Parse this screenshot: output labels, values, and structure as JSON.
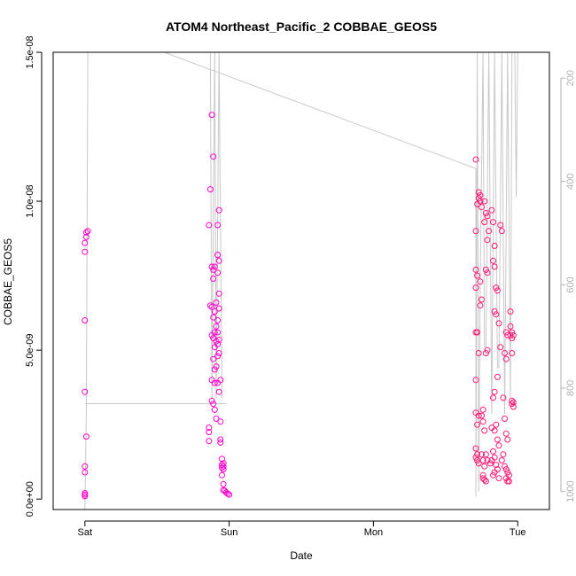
{
  "chart_data": {
    "type": "scatter",
    "title": "ATOM4 Northeast_Pacific_2 COBBAE_GEOS5",
    "xlabel": "Date",
    "ylabel": "COBBAE_GEOS5",
    "x_ticks": [
      "Sat",
      "Sun",
      "Mon",
      "Tue"
    ],
    "y_ticks": [
      "0.0e+00",
      "5.0e-09",
      "1.0e-08",
      "1.5e-08"
    ],
    "y_tick_values": [
      0,
      5e-09,
      1e-08,
      1.5e-08
    ],
    "right_ticks": [
      "200",
      "400",
      "600",
      "800",
      "1000"
    ],
    "right_tick_values": [
      200,
      400,
      600,
      800,
      1000
    ],
    "x_unit": "days since Sat 00:00",
    "xlim": [
      -0.22,
      3.22
    ],
    "ylim": [
      -3.5e-10,
      1.5e-08
    ],
    "right_ylim": [
      1035,
      150
    ],
    "point_color": "#ff00cc",
    "point_color_secondary": "#ff1a75",
    "line_color": "#c8c8c8",
    "points": [
      [
        0.0,
        9e-10
      ],
      [
        0.0,
        2e-10
      ],
      [
        0.0,
        1.5e-10
      ],
      [
        0.0,
        1e-10
      ],
      [
        0.01,
        8.8e-09
      ],
      [
        0.01,
        8.95e-09
      ],
      [
        0.02,
        9e-09
      ],
      [
        0.0,
        8.6e-09
      ],
      [
        0.0,
        8.3e-09
      ],
      [
        0.0,
        6e-09
      ],
      [
        0.0,
        3.6e-09
      ],
      [
        0.01,
        2.1e-09
      ],
      [
        0.0,
        1.1e-09
      ],
      [
        0.88,
        1.29e-08
      ],
      [
        0.89,
        1.15e-08
      ],
      [
        0.87,
        1.04e-08
      ],
      [
        0.86,
        9.2e-09
      ],
      [
        0.93,
        9.7e-09
      ],
      [
        0.92,
        9.2e-09
      ],
      [
        0.92,
        8.2e-09
      ],
      [
        0.93,
        8e-09
      ],
      [
        0.88,
        7.8e-09
      ],
      [
        0.89,
        7.7e-09
      ],
      [
        0.9,
        7.8e-09
      ],
      [
        0.92,
        7.6e-09
      ],
      [
        0.89,
        7.4e-09
      ],
      [
        0.93,
        6.9e-09
      ],
      [
        0.91,
        6.6e-09
      ],
      [
        0.88,
        6.45e-09
      ],
      [
        0.87,
        6.5e-09
      ],
      [
        0.9,
        6.3e-09
      ],
      [
        0.89,
        6.1e-09
      ],
      [
        0.93,
        6.4e-09
      ],
      [
        0.92,
        6e-09
      ],
      [
        0.91,
        5.8e-09
      ],
      [
        0.9,
        5.6e-09
      ],
      [
        0.92,
        5.6e-09
      ],
      [
        0.93,
        5.35e-09
      ],
      [
        0.92,
        5.2e-09
      ],
      [
        0.91,
        5.3e-09
      ],
      [
        0.88,
        5.5e-09
      ],
      [
        0.89,
        5.4e-09
      ],
      [
        0.9,
        5.1e-09
      ],
      [
        0.93,
        4.9e-09
      ],
      [
        0.92,
        4.8e-09
      ],
      [
        0.89,
        4.7e-09
      ],
      [
        0.91,
        4.45e-09
      ],
      [
        0.9,
        4.35e-09
      ],
      [
        0.88,
        4e-09
      ],
      [
        0.9,
        3.9e-09
      ],
      [
        0.92,
        3.9e-09
      ],
      [
        0.94,
        4e-09
      ],
      [
        0.93,
        3.6e-09
      ],
      [
        0.88,
        3.3e-09
      ],
      [
        0.89,
        3.2e-09
      ],
      [
        0.9,
        3e-09
      ],
      [
        0.91,
        2.7e-09
      ],
      [
        0.94,
        2.6e-09
      ],
      [
        0.86,
        2.4e-09
      ],
      [
        0.86,
        2.25e-09
      ],
      [
        0.86,
        1.95e-09
      ],
      [
        0.94,
        2e-09
      ],
      [
        0.94,
        1.9e-09
      ],
      [
        0.95,
        1.35e-09
      ],
      [
        0.96,
        1.2e-09
      ],
      [
        0.95,
        1.15e-09
      ],
      [
        0.96,
        1.1e-09
      ],
      [
        0.95,
        1.05e-09
      ],
      [
        0.96,
        1e-09
      ],
      [
        0.95,
        8e-10
      ],
      [
        0.96,
        5e-10
      ],
      [
        0.96,
        3e-10
      ],
      [
        0.97,
        2.8e-10
      ],
      [
        0.98,
        2.2e-10
      ],
      [
        0.99,
        1.8e-10
      ],
      [
        1.0,
        1.5e-10
      ],
      [
        2.71,
        1.14e-08
      ],
      [
        2.73,
        1.03e-08
      ],
      [
        2.73,
        1.01e-08
      ],
      [
        2.74,
        1.02e-08
      ],
      [
        2.74,
        1e-08
      ],
      [
        2.72,
        9.9e-09
      ],
      [
        2.75,
        9.8e-09
      ],
      [
        2.71,
        9e-09
      ],
      [
        2.71,
        7.7e-09
      ],
      [
        2.72,
        7.5e-09
      ],
      [
        2.71,
        7.1e-09
      ],
      [
        2.74,
        7.3e-09
      ],
      [
        2.75,
        6.7e-09
      ],
      [
        2.74,
        6.5e-09
      ],
      [
        2.71,
        5.6e-09
      ],
      [
        2.72,
        5.6e-09
      ],
      [
        2.73,
        4.9e-09
      ],
      [
        2.71,
        4e-09
      ],
      [
        2.71,
        2.9e-09
      ],
      [
        2.73,
        2.8e-09
      ],
      [
        2.72,
        2.5e-09
      ],
      [
        2.71,
        1.7e-09
      ],
      [
        2.72,
        1.5e-09
      ],
      [
        2.72,
        1.3e-09
      ],
      [
        2.71,
        1.4e-09
      ],
      [
        2.73,
        1.2e-09
      ],
      [
        2.77,
        1e-08
      ],
      [
        2.78,
        9.6e-09
      ],
      [
        2.79,
        9.5e-09
      ],
      [
        2.77,
        9.3e-09
      ],
      [
        2.8,
        9e-09
      ],
      [
        2.79,
        8.7e-09
      ],
      [
        2.78,
        7.7e-09
      ],
      [
        2.79,
        7.6e-09
      ],
      [
        2.78,
        4.9e-09
      ],
      [
        2.79,
        5e-09
      ],
      [
        2.76,
        3e-09
      ],
      [
        2.75,
        2.8e-09
      ],
      [
        2.76,
        2.6e-09
      ],
      [
        2.77,
        2.3e-09
      ],
      [
        2.75,
        1.5e-09
      ],
      [
        2.76,
        1.3e-09
      ],
      [
        2.78,
        1.5e-09
      ],
      [
        2.79,
        1.3e-09
      ],
      [
        2.77,
        1.1e-09
      ],
      [
        2.76,
        7e-10
      ],
      [
        2.77,
        6.5e-10
      ],
      [
        2.78,
        6e-10
      ],
      [
        2.76,
        8e-10
      ],
      [
        2.82,
        9.7e-09
      ],
      [
        2.83,
        9.3e-09
      ],
      [
        2.84,
        8.5e-09
      ],
      [
        2.83,
        8e-09
      ],
      [
        2.84,
        7.8e-09
      ],
      [
        2.85,
        7.1e-09
      ],
      [
        2.86,
        7e-09
      ],
      [
        2.84,
        6.3e-09
      ],
      [
        2.85,
        6.2e-09
      ],
      [
        2.87,
        5.9e-09
      ],
      [
        2.88,
        5.1e-09
      ],
      [
        2.86,
        4.1e-09
      ],
      [
        2.84,
        3.6e-09
      ],
      [
        2.83,
        3.4e-09
      ],
      [
        2.82,
        2.4e-09
      ],
      [
        2.84,
        2.3e-09
      ],
      [
        2.85,
        2.5e-09
      ],
      [
        2.86,
        2e-09
      ],
      [
        2.87,
        1.8e-09
      ],
      [
        2.83,
        1.6e-09
      ],
      [
        2.84,
        1.4e-09
      ],
      [
        2.82,
        1.3e-09
      ],
      [
        2.81,
        1.2e-09
      ],
      [
        2.85,
        1.15e-09
      ],
      [
        2.86,
        1e-09
      ],
      [
        2.84,
        9e-10
      ],
      [
        2.83,
        8e-10
      ],
      [
        2.87,
        7e-10
      ],
      [
        2.88,
        9.2e-09
      ],
      [
        2.89,
        9e-09
      ],
      [
        2.92,
        5.6e-09
      ],
      [
        2.93,
        5.5e-09
      ],
      [
        2.91,
        4.9e-09
      ],
      [
        2.92,
        4.7e-09
      ],
      [
        2.9,
        3.4e-09
      ],
      [
        2.91,
        2.7e-09
      ],
      [
        2.92,
        2.2e-09
      ],
      [
        2.93,
        2e-09
      ],
      [
        2.9,
        1.5e-09
      ],
      [
        2.89,
        1.3e-09
      ],
      [
        2.91,
        1.1e-09
      ],
      [
        2.92,
        1e-09
      ],
      [
        2.93,
        9e-10
      ],
      [
        2.94,
        8e-10
      ],
      [
        2.92,
        7e-10
      ],
      [
        2.93,
        6e-10
      ],
      [
        2.94,
        6e-10
      ],
      [
        2.95,
        6.3e-09
      ],
      [
        2.95,
        5.8e-09
      ],
      [
        2.96,
        5.6e-09
      ],
      [
        2.95,
        5.5e-09
      ],
      [
        2.96,
        5.4e-09
      ],
      [
        2.97,
        5.5e-09
      ],
      [
        2.96,
        4.9e-09
      ],
      [
        2.96,
        3.3e-09
      ],
      [
        2.97,
        3.25e-09
      ],
      [
        2.96,
        3.2e-09
      ],
      [
        2.97,
        3.1e-09
      ]
    ],
    "line": [
      [
        0.0,
        1035
      ],
      [
        0.01,
        850
      ],
      [
        0.02,
        150
      ],
      [
        0.55,
        150
      ],
      [
        2.71,
        375
      ],
      [
        2.71,
        1010
      ],
      [
        2.72,
        150
      ],
      [
        2.73,
        1000
      ],
      [
        2.74,
        600
      ],
      [
        2.76,
        150
      ],
      [
        2.77,
        720
      ],
      [
        2.78,
        720
      ],
      [
        2.8,
        150
      ],
      [
        2.82,
        850
      ],
      [
        2.84,
        150
      ],
      [
        2.86,
        760
      ],
      [
        2.87,
        760
      ],
      [
        2.89,
        150
      ],
      [
        2.91,
        850
      ],
      [
        2.93,
        150
      ],
      [
        2.95,
        820
      ],
      [
        2.96,
        150
      ],
      [
        2.98,
        150
      ],
      [
        2.99,
        430
      ],
      [
        3.0,
        150
      ]
    ],
    "line_extra": [
      [
        0.0,
        830
      ],
      [
        0.98,
        830
      ]
    ],
    "line_sun": [
      [
        0.87,
        150
      ],
      [
        0.88,
        820
      ],
      [
        0.9,
        150
      ],
      [
        0.91,
        820
      ],
      [
        0.93,
        150
      ],
      [
        0.95,
        820
      ]
    ]
  }
}
